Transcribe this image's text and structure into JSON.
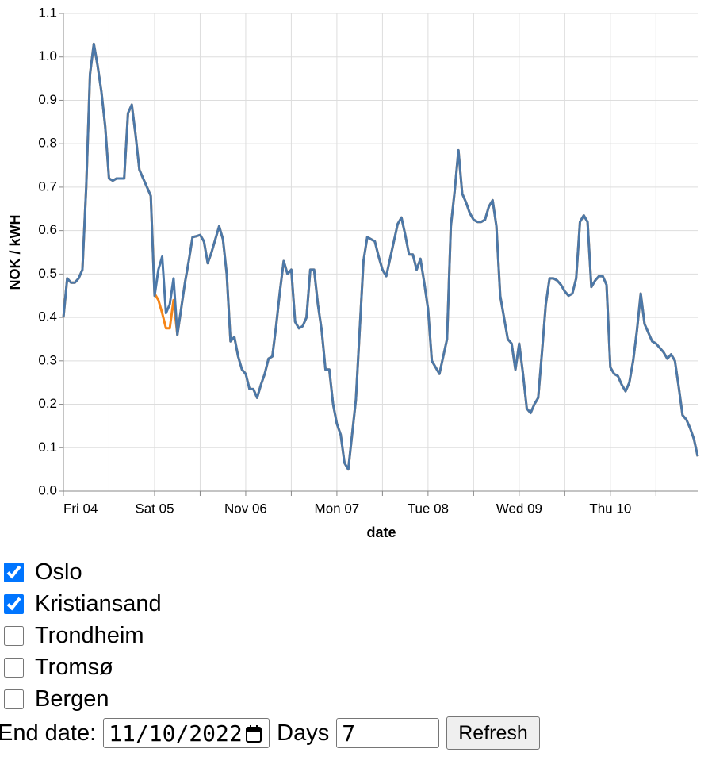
{
  "chart_data": {
    "type": "line",
    "x_title": "date",
    "y_title": "NOK / kWH",
    "x": [
      0,
      1,
      2,
      3,
      4,
      5,
      6,
      7,
      8,
      9,
      10,
      11,
      12,
      13,
      14,
      15,
      16,
      17,
      18,
      19,
      20,
      21,
      22,
      23,
      24,
      25,
      26,
      27,
      28,
      29,
      30,
      31,
      32,
      33,
      34,
      35,
      36,
      37,
      38,
      39,
      40,
      41,
      42,
      43,
      44,
      45,
      46,
      47,
      48,
      49,
      50,
      51,
      52,
      53,
      54,
      55,
      56,
      57,
      58,
      59,
      60,
      61,
      62,
      63,
      64,
      65,
      66,
      67,
      68,
      69,
      70,
      71,
      72,
      73,
      74,
      75,
      76,
      77,
      78,
      79,
      80,
      81,
      82,
      83,
      84,
      85,
      86,
      87,
      88,
      89,
      90,
      91,
      92,
      93,
      94,
      95,
      96,
      97,
      98,
      99,
      100,
      101,
      102,
      103,
      104,
      105,
      106,
      107,
      108,
      109,
      110,
      111,
      112,
      113,
      114,
      115,
      116,
      117,
      118,
      119,
      120,
      121,
      122,
      123,
      124,
      125,
      126,
      127,
      128,
      129,
      130,
      131,
      132,
      133,
      134,
      135,
      136,
      137,
      138,
      139,
      140,
      141,
      142,
      143,
      144,
      145,
      146,
      147,
      148,
      149,
      150,
      151,
      152,
      153,
      154,
      155,
      156,
      157,
      158,
      159,
      160,
      161,
      162,
      163,
      164,
      165,
      166,
      167
    ],
    "series": [
      {
        "name": "Oslo",
        "color": "#4c78a8",
        "values": [
          0.4,
          0.49,
          0.48,
          0.48,
          0.49,
          0.51,
          0.7,
          0.96,
          1.03,
          0.98,
          0.92,
          0.84,
          0.72,
          0.715,
          0.72,
          0.72,
          0.72,
          0.87,
          0.89,
          0.82,
          0.74,
          0.72,
          0.7,
          0.68,
          0.45,
          0.51,
          0.54,
          0.41,
          0.43,
          0.49,
          0.36,
          0.42,
          0.48,
          0.53,
          0.585,
          0.587,
          0.59,
          0.575,
          0.525,
          0.55,
          0.58,
          0.61,
          0.58,
          0.5,
          0.345,
          0.355,
          0.31,
          0.28,
          0.27,
          0.235,
          0.235,
          0.215,
          0.245,
          0.27,
          0.305,
          0.31,
          0.38,
          0.46,
          0.53,
          0.5,
          0.51,
          0.39,
          0.375,
          0.38,
          0.4,
          0.51,
          0.51,
          0.43,
          0.37,
          0.28,
          0.28,
          0.2,
          0.155,
          0.13,
          0.065,
          0.05,
          0.13,
          0.21,
          0.37,
          0.53,
          0.585,
          0.58,
          0.575,
          0.54,
          0.51,
          0.495,
          0.535,
          0.575,
          0.615,
          0.63,
          0.59,
          0.545,
          0.545,
          0.51,
          0.535,
          0.48,
          0.42,
          0.3,
          0.285,
          0.27,
          0.31,
          0.35,
          0.61,
          0.69,
          0.785,
          0.685,
          0.665,
          0.64,
          0.625,
          0.62,
          0.62,
          0.625,
          0.655,
          0.67,
          0.61,
          0.45,
          0.4,
          0.35,
          0.34,
          0.28,
          0.34,
          0.27,
          0.19,
          0.18,
          0.2,
          0.215,
          0.32,
          0.43,
          0.49,
          0.49,
          0.485,
          0.475,
          0.46,
          0.45,
          0.455,
          0.49,
          0.62,
          0.635,
          0.62,
          0.47,
          0.485,
          0.495,
          0.495,
          0.475,
          0.285,
          0.27,
          0.265,
          0.245,
          0.23,
          0.25,
          0.3,
          0.37,
          0.455,
          0.385,
          0.365,
          0.345,
          0.34,
          0.33,
          0.32,
          0.305,
          0.315,
          0.3,
          0.24,
          0.175,
          0.165,
          0.145,
          0.12,
          0.08
        ]
      },
      {
        "name": "Kristiansand",
        "color": "#f58518",
        "values": [
          0.4,
          0.49,
          0.48,
          0.48,
          0.49,
          0.51,
          0.7,
          0.96,
          1.03,
          0.98,
          0.92,
          0.84,
          0.72,
          0.715,
          0.72,
          0.72,
          0.72,
          0.87,
          0.89,
          0.82,
          0.74,
          0.72,
          0.7,
          0.68,
          0.455,
          0.44,
          0.41,
          0.375,
          0.375,
          0.44,
          0.36,
          0.42,
          0.48,
          0.53,
          0.585,
          0.587,
          0.59,
          0.575,
          0.525,
          0.55,
          0.58,
          0.61,
          0.58,
          0.5,
          0.345,
          0.355,
          0.31,
          0.28,
          0.27,
          0.235,
          0.235,
          0.215,
          0.245,
          0.27,
          0.305,
          0.31,
          0.38,
          0.46,
          0.53,
          0.5,
          0.51,
          0.39,
          0.375,
          0.38,
          0.4,
          0.51,
          0.51,
          0.43,
          0.37,
          0.28,
          0.28,
          0.2,
          0.155,
          0.13,
          0.065,
          0.05,
          0.13,
          0.21,
          0.37,
          0.53,
          0.585,
          0.58,
          0.575,
          0.54,
          0.51,
          0.495,
          0.535,
          0.575,
          0.615,
          0.63,
          0.59,
          0.545,
          0.545,
          0.51,
          0.535,
          0.48,
          0.42,
          0.3,
          0.285,
          0.27,
          0.31,
          0.35,
          0.61,
          0.69,
          0.785,
          0.685,
          0.665,
          0.64,
          0.625,
          0.62,
          0.62,
          0.625,
          0.655,
          0.67,
          0.61,
          0.45,
          0.4,
          0.35,
          0.34,
          0.28,
          0.34,
          0.27,
          0.19,
          0.18,
          0.2,
          0.215,
          0.32,
          0.43,
          0.49,
          0.49,
          0.485,
          0.475,
          0.46,
          0.45,
          0.455,
          0.49,
          0.62,
          0.635,
          0.62,
          0.47,
          0.485,
          0.495,
          0.495,
          0.475,
          0.285,
          0.27,
          0.265,
          0.245,
          0.23,
          0.25,
          0.3,
          0.37,
          0.455,
          0.385,
          0.365,
          0.345,
          0.34,
          0.33,
          0.32,
          0.305,
          0.315,
          0.3,
          0.24,
          0.175,
          0.165,
          0.145,
          0.12,
          0.08
        ]
      }
    ],
    "xlim": [
      0,
      167
    ],
    "xticks": [
      {
        "value": 0,
        "label": "Fri 04"
      },
      {
        "value": 24,
        "label": "Sat 05"
      },
      {
        "value": 48,
        "label": "Nov 06"
      },
      {
        "value": 72,
        "label": "Mon 07"
      },
      {
        "value": 96,
        "label": "Tue 08"
      },
      {
        "value": 120,
        "label": "Wed 09"
      },
      {
        "value": 144,
        "label": "Thu 10"
      }
    ],
    "x_minor_ticks": [
      12,
      36,
      60,
      84,
      108,
      132,
      156
    ],
    "ylim": [
      0,
      1.1
    ],
    "yticks": [
      {
        "value": 0,
        "label": "0.0"
      },
      0.1,
      0.2,
      0.3,
      0.4,
      0.5,
      0.6,
      0.7,
      0.8,
      0.9,
      {
        "value": 1,
        "label": "1.0"
      },
      1.1
    ],
    "grid": true
  },
  "controls": {
    "cities": [
      {
        "label": "Oslo",
        "checked": true
      },
      {
        "label": "Kristiansand",
        "checked": true
      },
      {
        "label": "Trondheim",
        "checked": false
      },
      {
        "label": "Tromsø",
        "checked": false
      },
      {
        "label": "Bergen",
        "checked": false
      }
    ],
    "end_date": {
      "label": "End date:",
      "value": "11/10/2022"
    },
    "days": {
      "label": "Days",
      "value": 7
    },
    "refresh": "Refresh"
  }
}
